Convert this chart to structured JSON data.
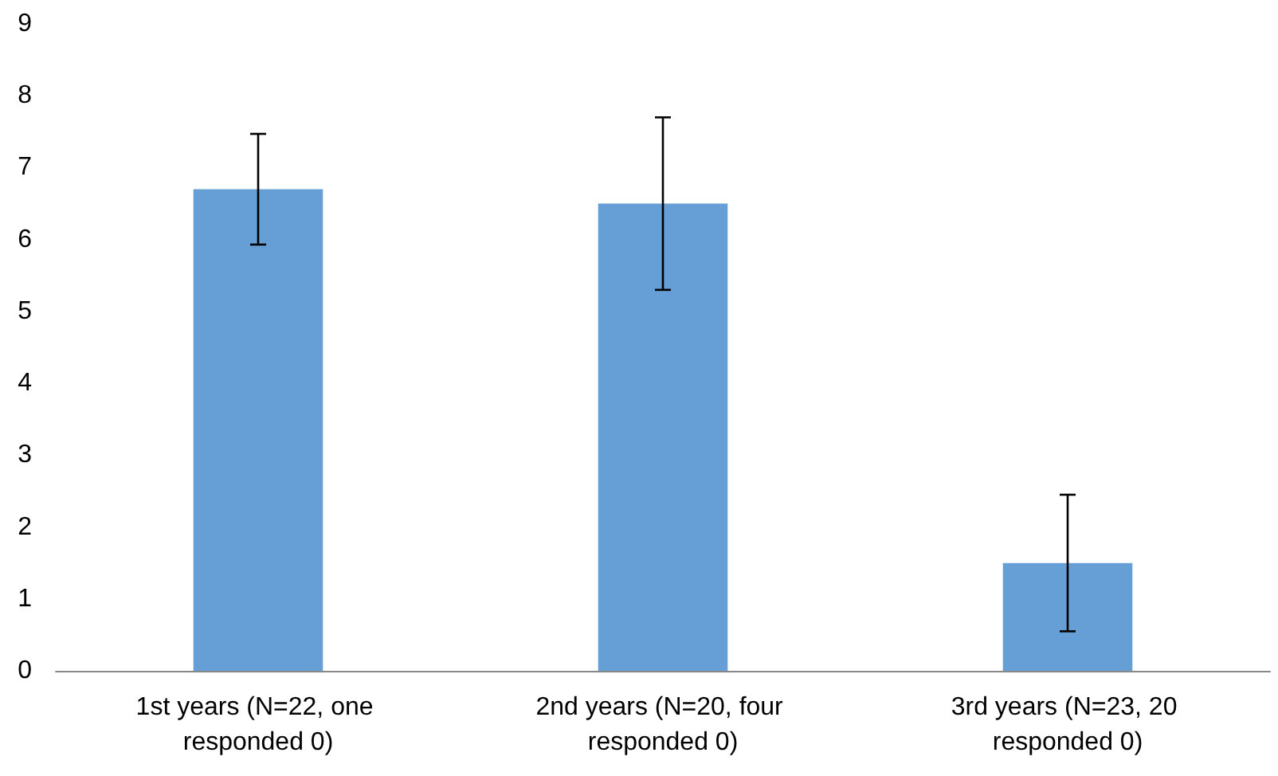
{
  "chart_data": {
    "type": "bar",
    "categories": [
      "1st years (N=22, one responded 0)",
      "2nd years (N=20, four responded 0)",
      "3rd years (N=23, 20 responded 0)"
    ],
    "values": [
      6.7,
      6.5,
      1.5
    ],
    "color": "#659fd6",
    "errors": [
      0.77,
      1.2,
      0.95
    ],
    "ylim": [
      0,
      9
    ],
    "yticks": [
      0,
      1,
      2,
      3,
      4,
      5,
      6,
      7,
      8,
      9
    ],
    "grid": false
  }
}
